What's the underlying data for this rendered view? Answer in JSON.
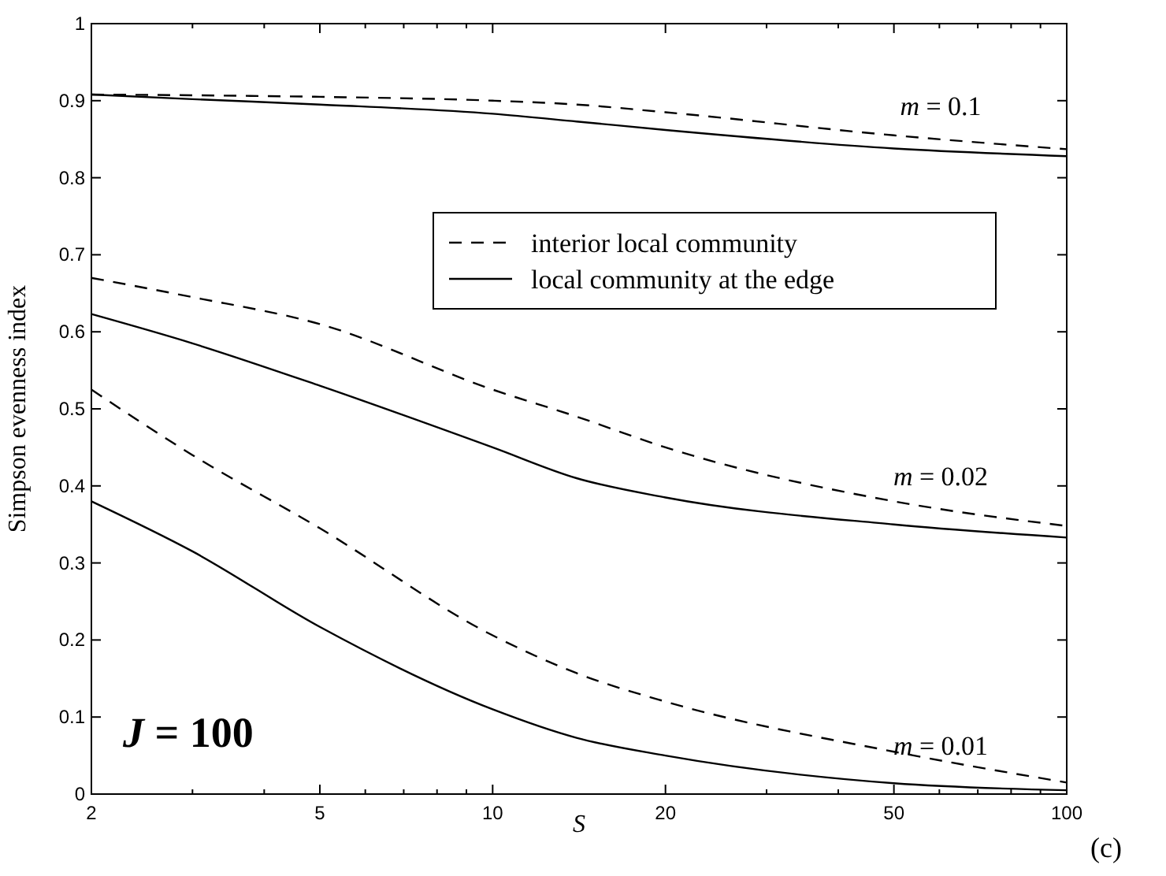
{
  "chart_data": {
    "type": "line",
    "xlabel": "S",
    "ylabel": "Simpson evenness index",
    "log": "x",
    "xlim": [
      2,
      100
    ],
    "ylim": [
      0,
      1
    ],
    "xticks": [
      2,
      {
        "value": 3,
        "label": null
      },
      {
        "value": 4,
        "label": null
      },
      5,
      {
        "value": 6,
        "label": null
      },
      {
        "value": 7,
        "label": null
      },
      {
        "value": 8,
        "label": null
      },
      {
        "value": 9,
        "label": null
      },
      10,
      20,
      {
        "value": 30,
        "label": null
      },
      {
        "value": 40,
        "label": null
      },
      50,
      {
        "value": 60,
        "label": null
      },
      {
        "value": 70,
        "label": null
      },
      {
        "value": 80,
        "label": null
      },
      {
        "value": 90,
        "label": null
      },
      100
    ],
    "yticks": [
      0,
      0.1,
      0.2,
      0.3,
      0.4,
      0.5,
      0.6,
      0.7,
      0.8,
      0.9,
      1
    ],
    "legend": "top right",
    "grid": false,
    "x": [
      2,
      3,
      5,
      10,
      14,
      20,
      50,
      100
    ],
    "series": [
      {
        "name": "interior local community",
        "color": "#000000",
        "line_style": "dashed",
        "values": [
          0.908,
          0.907,
          0.905,
          0.9,
          0.895,
          0.885,
          0.855,
          0.837
        ]
      },
      {
        "name": "local community at the edge",
        "color": "#000000",
        "line_style": "solid",
        "values": [
          0.908,
          0.902,
          0.895,
          0.883,
          0.873,
          0.862,
          0.838,
          0.828
        ]
      },
      {
        "color": "#000000",
        "line_style": "dashed",
        "values": [
          0.67,
          0.645,
          0.61,
          0.525,
          0.49,
          0.45,
          0.38,
          0.348
        ]
      },
      {
        "color": "#000000",
        "line_style": "solid",
        "values": [
          0.623,
          0.585,
          0.53,
          0.45,
          0.41,
          0.385,
          0.35,
          0.333
        ]
      },
      {
        "color": "#000000",
        "line_style": "dashed",
        "values": [
          0.525,
          0.44,
          0.345,
          0.206,
          0.157,
          0.12,
          0.055,
          0.015
        ]
      },
      {
        "color": "#000000",
        "line_style": "solid",
        "values": [
          0.38,
          0.315,
          0.217,
          0.11,
          0.073,
          0.05,
          0.014,
          0.005
        ]
      }
    ],
    "annotations": [
      "m = 0.1",
      "m = 0.02",
      "m = 0.01",
      "J = 100",
      "(c)"
    ]
  }
}
